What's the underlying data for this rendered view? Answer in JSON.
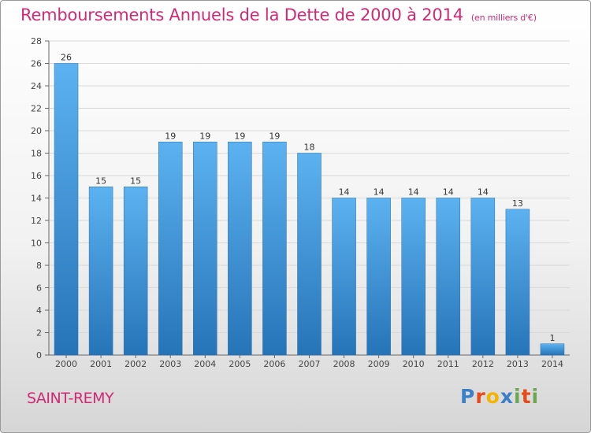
{
  "title": "Remboursements Annuels de la Dette de 2000 à 2014",
  "subtitle": "(en milliers d'€)",
  "commune": "SAINT-REMY",
  "logo": {
    "text": "Proxiti",
    "letters": [
      "P",
      "r",
      "o",
      "x",
      "i",
      "t",
      "i"
    ],
    "colors": [
      "#3a7fc8",
      "#e64a19",
      "#f4b400",
      "#3a7fc8",
      "#6aa84f",
      "#e64a19",
      "#6aa84f"
    ]
  },
  "colors": {
    "bar": "#3d98e0",
    "bar_light": "#5cb2f0",
    "bar_dark": "#2674b8",
    "title": "#d12a74"
  },
  "chart_data": {
    "type": "bar",
    "categories": [
      "2000",
      "2001",
      "2002",
      "2003",
      "2004",
      "2005",
      "2006",
      "2007",
      "2008",
      "2009",
      "2010",
      "2011",
      "2012",
      "2013",
      "2014"
    ],
    "values": [
      26,
      15,
      15,
      19,
      19,
      19,
      19,
      18,
      14,
      14,
      14,
      14,
      14,
      13,
      1
    ],
    "yticks": [
      0,
      2,
      4,
      6,
      8,
      10,
      12,
      14,
      16,
      18,
      20,
      22,
      24,
      26,
      28
    ],
    "ylim": [
      0,
      28
    ],
    "grid": true,
    "title": "Remboursements Annuels de la Dette de 2000 à 2014",
    "xlabel": "",
    "ylabel": ""
  }
}
